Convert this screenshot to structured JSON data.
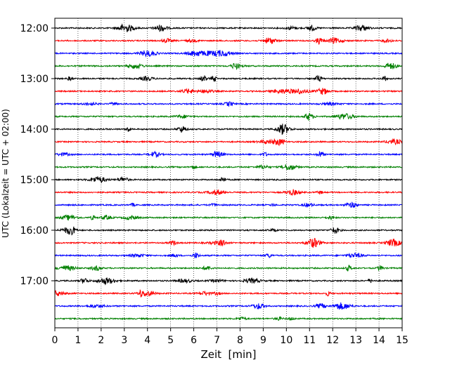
{
  "chart_data": {
    "type": "line",
    "subtype": "seismogram-helicorder",
    "xlabel": "Zeit  [min]",
    "ylabel": "UTC (Lokalzeit = UTC + 02:00)",
    "xlim": [
      0,
      15
    ],
    "x_ticks": [
      "0",
      "1",
      "2",
      "3",
      "4",
      "5",
      "6",
      "7",
      "8",
      "9",
      "10",
      "11",
      "12",
      "13",
      "14",
      "15"
    ],
    "y_tick_labels": [
      "12:00",
      "13:00",
      "14:00",
      "15:00",
      "16:00",
      "17:00"
    ],
    "y_tick_trace_index": [
      0,
      4,
      8,
      12,
      16,
      20
    ],
    "trace_count": 24,
    "trace_interval_min": 15,
    "start_time": "12:00",
    "trace_colors": [
      "#000000",
      "#ff0000",
      "#0000ff",
      "#008000"
    ],
    "grid": "vertical dotted lines at each minute"
  }
}
